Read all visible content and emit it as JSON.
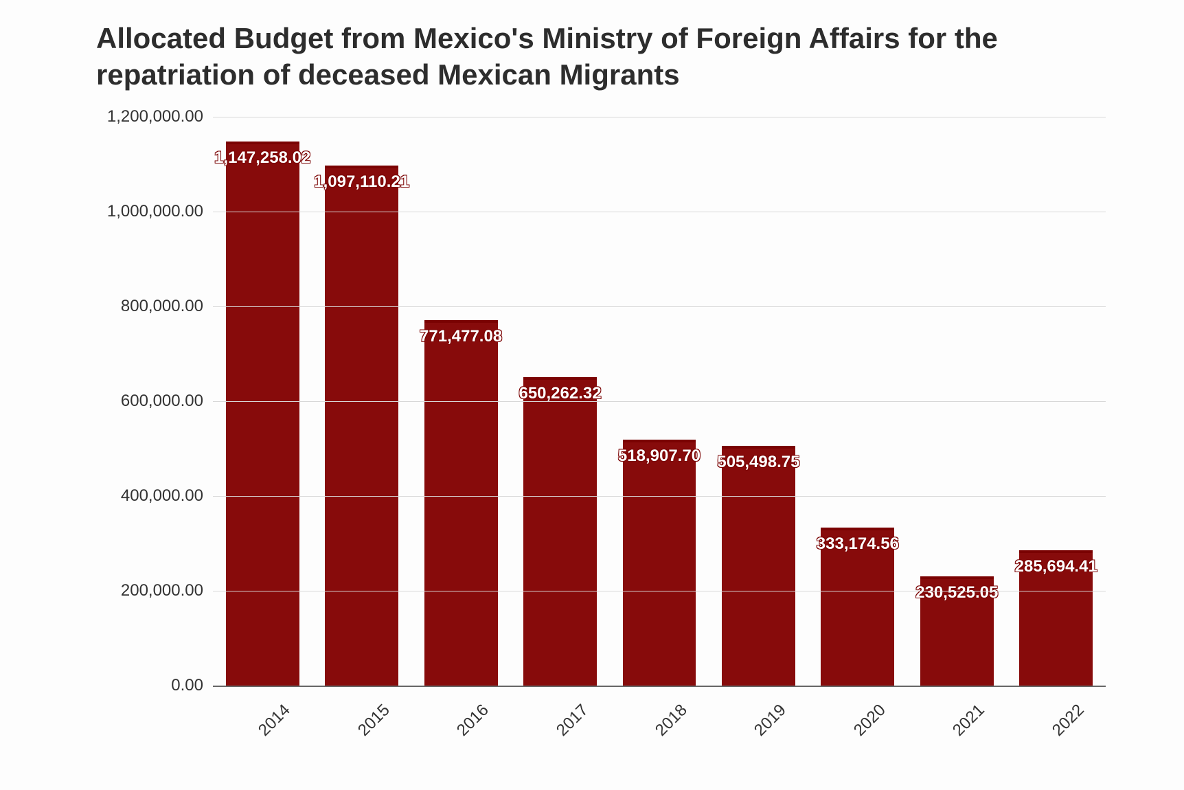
{
  "chart": {
    "type": "bar",
    "title": "Allocated Budget from Mexico's Ministry of Foreign Affairs for the repatriation of deceased Mexican Migrants",
    "title_fontsize": 42,
    "title_color": "#2d2d2d",
    "background_color": "#fdfdfd",
    "bar_color": "#870b0b",
    "bar_top_border_color": "#7a0202",
    "grid_color": "#d8d8d8",
    "axis_color": "#666666",
    "tick_label_color": "#333333",
    "tick_fontsize": 24,
    "data_label_color": "#ffffff",
    "data_label_fontsize": 24,
    "data_label_weight": 700,
    "x_tick_rotation_deg": -45,
    "categories": [
      "2014",
      "2015",
      "2016",
      "2017",
      "2018",
      "2019",
      "2020",
      "2021",
      "2022"
    ],
    "values": [
      1147258.02,
      1097110.21,
      771477.08,
      650262.32,
      518907.7,
      505498.75,
      333174.56,
      230525.05,
      285694.41
    ],
    "value_labels": [
      "1,147,258.02",
      "1,097,110.21",
      "771,477.08",
      "650,262.32",
      "518,907.70",
      "505,498.75",
      "333,174.56",
      "230,525.05",
      "285,694.41"
    ],
    "y_ticks": [
      0,
      200000,
      400000,
      600000,
      800000,
      1000000,
      1200000
    ],
    "y_tick_labels": [
      "0.00",
      "200,000.00",
      "400,000.00",
      "600,000.00",
      "800,000.00",
      "1,000,000.00",
      "1,200,000.00"
    ],
    "ylim": [
      0,
      1200000
    ],
    "bar_width_ratio": 0.74
  }
}
